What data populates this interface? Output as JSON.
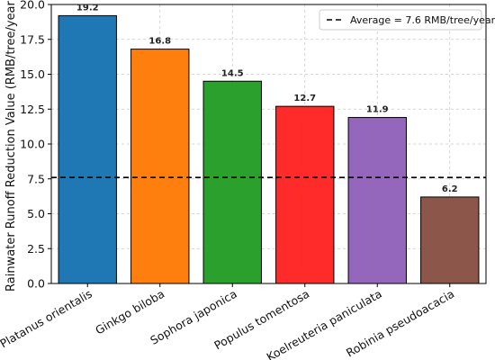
{
  "chart_data": {
    "type": "bar",
    "title": "",
    "xlabel": "",
    "ylabel": "Rainwater Runoff Reduction Value (RMB/tree/year)",
    "categories": [
      "Platanus orientalis",
      "Ginkgo biloba",
      "Sophora japonica",
      "Populus tomentosa",
      "Koelreuteria paniculata",
      "Robinia pseudoacacia"
    ],
    "values": [
      19.2,
      16.8,
      14.5,
      12.7,
      11.9,
      6.2
    ],
    "value_labels": [
      "19.2",
      "16.8",
      "14.5",
      "12.7",
      "11.9",
      "6.2"
    ],
    "colors": [
      "#1f77b4",
      "#ff7f0e",
      "#2ca02c",
      "#ff2a2a",
      "#9467bd",
      "#8c564b"
    ],
    "ylim": [
      0,
      20
    ],
    "yticks": [
      0,
      2.5,
      5,
      7.5,
      10,
      12.5,
      15,
      17.5,
      20
    ],
    "ytick_labels": [
      "0.0",
      "2.5",
      "5.0",
      "7.5",
      "10.0",
      "12.5",
      "15.0",
      "17.5",
      "20.0"
    ],
    "average": {
      "value": 7.6,
      "label": "Average = 7.6 RMB/tree/year",
      "style": "dashed",
      "color": "#000000"
    },
    "grid": true,
    "legend_position": "top-right"
  }
}
